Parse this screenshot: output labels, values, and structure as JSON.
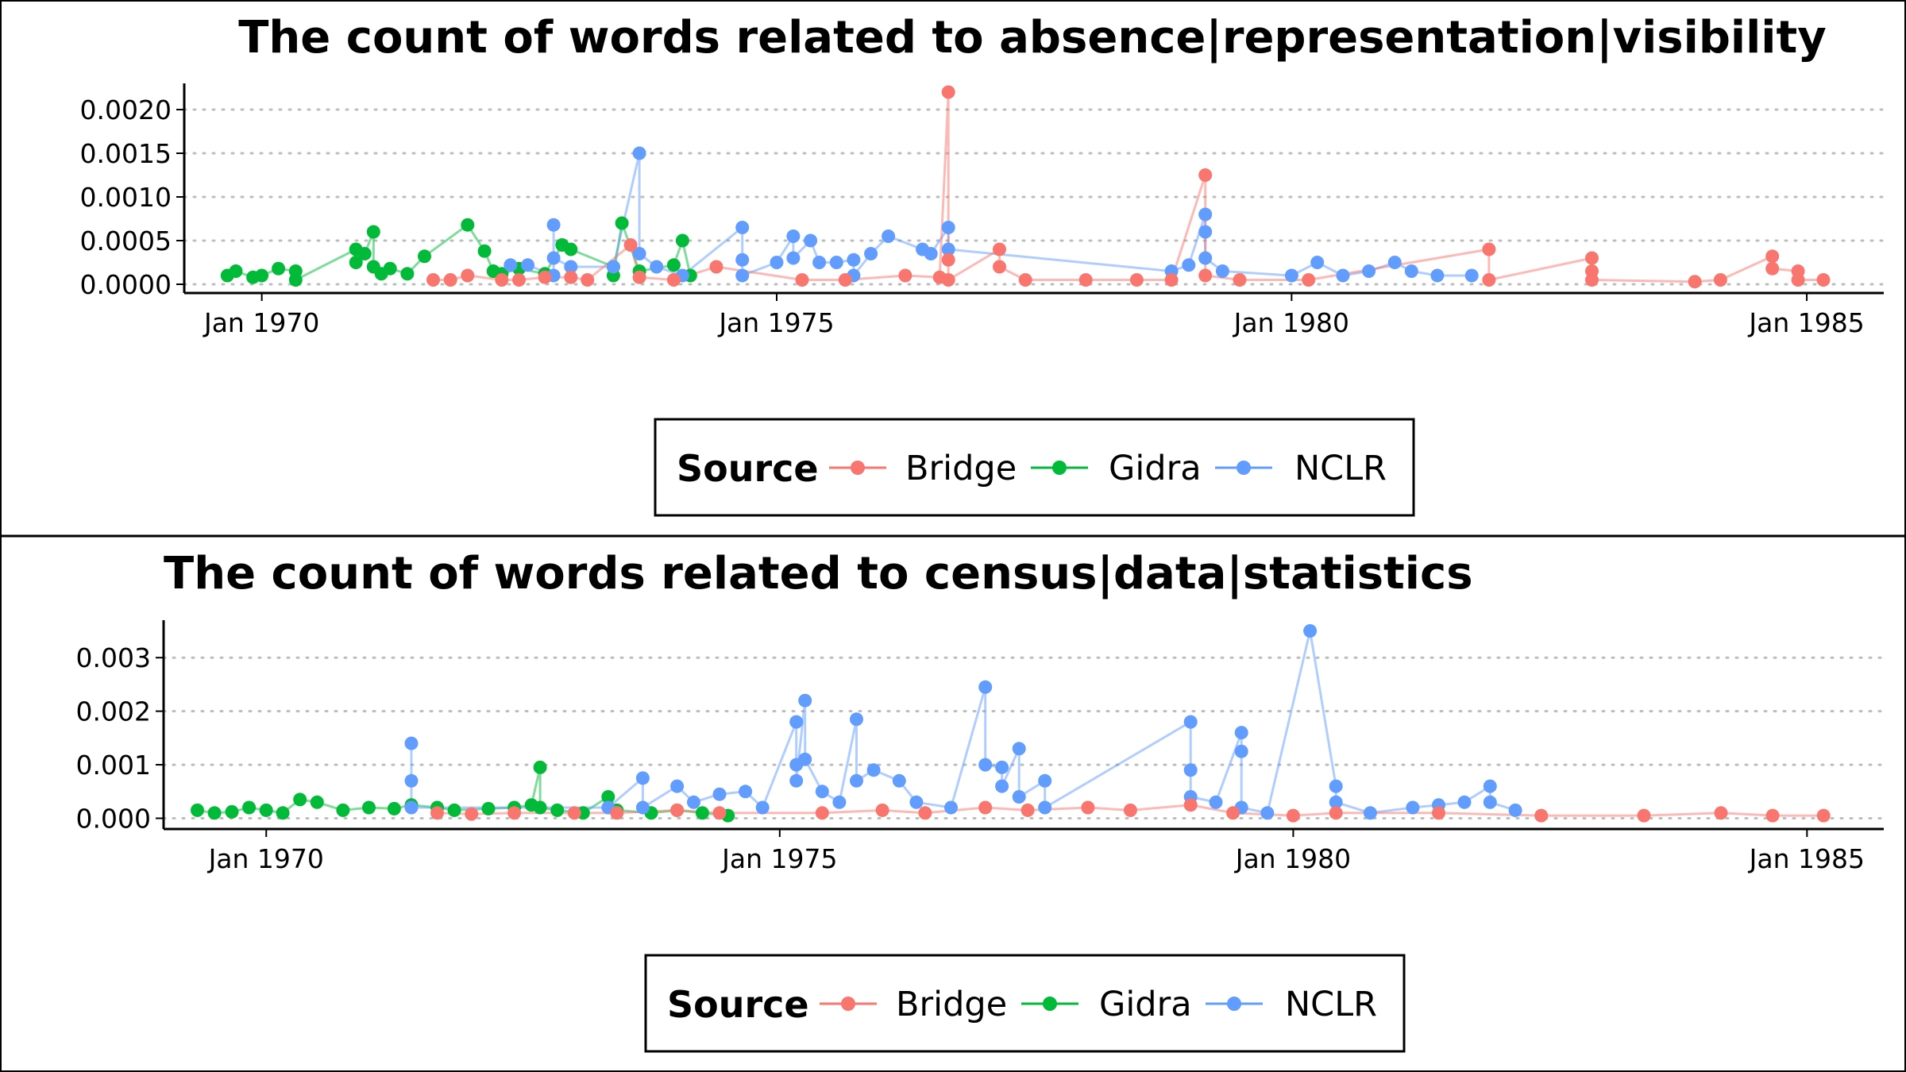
{
  "legend": {
    "title": "Source",
    "entries": [
      {
        "name": "Bridge",
        "color": "#F8766D"
      },
      {
        "name": "Gidra",
        "color": "#00BA38"
      },
      {
        "name": "NCLR",
        "color": "#619CFF"
      }
    ]
  },
  "chart_data": [
    {
      "type": "line",
      "title": "The count of words related to absence|representation|visibility",
      "xlabel": "",
      "ylabel": "",
      "x_type": "date",
      "xlim": [
        "1969-04-01",
        "1985-10-01"
      ],
      "ylim": [
        -0.0001,
        0.0023
      ],
      "x_ticks": [
        {
          "date": "1970-01-01",
          "label": "Jan 1970"
        },
        {
          "date": "1975-01-01",
          "label": "Jan 1975"
        },
        {
          "date": "1980-01-01",
          "label": "Jan 1980"
        },
        {
          "date": "1985-01-01",
          "label": "Jan 1985"
        }
      ],
      "y_ticks": [
        {
          "value": 0,
          "label": "0.0000"
        },
        {
          "value": 0.0005,
          "label": "0.0005"
        },
        {
          "value": 0.001,
          "label": "0.0010"
        },
        {
          "value": 0.0015,
          "label": "0.0015"
        },
        {
          "value": 0.002,
          "label": "0.0020"
        }
      ],
      "grid": "horizontal-dotted",
      "legend_position": "bottom",
      "series": [
        {
          "name": "Gidra",
          "color": "#00BA38",
          "points": [
            [
              "1969-09-01",
              0.0001
            ],
            [
              "1969-10-01",
              0.00015
            ],
            [
              "1969-12-01",
              8e-05
            ],
            [
              "1970-01-01",
              0.0001
            ],
            [
              "1970-03-01",
              0.00018
            ],
            [
              "1970-05-01",
              0.00015
            ],
            [
              "1970-05-01",
              5e-05
            ],
            [
              "1970-12-01",
              0.0004
            ],
            [
              "1970-12-01",
              0.00025
            ],
            [
              "1971-01-01",
              0.00035
            ],
            [
              "1971-02-01",
              0.0006
            ],
            [
              "1971-02-01",
              0.0002
            ],
            [
              "1971-03-01",
              0.00012
            ],
            [
              "1971-04-01",
              0.00018
            ],
            [
              "1971-06-01",
              0.00012
            ],
            [
              "1971-08-01",
              0.00032
            ],
            [
              "1972-01-01",
              0.00068
            ],
            [
              "1972-03-01",
              0.00038
            ],
            [
              "1972-04-01",
              0.00015
            ],
            [
              "1972-05-01",
              0.00012
            ],
            [
              "1972-07-01",
              0.00018
            ],
            [
              "1972-10-01",
              0.00012
            ],
            [
              "1972-12-01",
              0.00045
            ],
            [
              "1973-01-01",
              0.0004
            ],
            [
              "1973-06-01",
              0.0002
            ],
            [
              "1973-06-01",
              0.0001
            ],
            [
              "1973-07-01",
              0.0007
            ],
            [
              "1973-09-01",
              0.00015
            ],
            [
              "1974-01-01",
              0.00022
            ],
            [
              "1974-02-01",
              0.0005
            ],
            [
              "1974-03-01",
              0.0001
            ]
          ]
        },
        {
          "name": "NCLR",
          "color": "#619CFF",
          "points": [
            [
              "1972-06-01",
              0.00022
            ],
            [
              "1972-08-01",
              0.00022
            ],
            [
              "1972-11-01",
              0.0001
            ],
            [
              "1972-11-01",
              0.00068
            ],
            [
              "1972-11-01",
              0.0003
            ],
            [
              "1973-01-01",
              0.0002
            ],
            [
              "1973-06-01",
              0.0002
            ],
            [
              "1973-09-01",
              0.0015
            ],
            [
              "1973-09-01",
              0.00035
            ],
            [
              "1973-11-01",
              0.0002
            ],
            [
              "1974-02-01",
              0.0001
            ],
            [
              "1974-09-01",
              0.00065
            ],
            [
              "1974-09-01",
              0.00028
            ],
            [
              "1974-09-01",
              0.0001
            ],
            [
              "1975-01-01",
              0.00025
            ],
            [
              "1975-03-01",
              0.00055
            ],
            [
              "1975-03-01",
              0.0003
            ],
            [
              "1975-05-01",
              0.0005
            ],
            [
              "1975-06-01",
              0.00025
            ],
            [
              "1975-08-01",
              0.00025
            ],
            [
              "1975-10-01",
              0.00028
            ],
            [
              "1975-10-01",
              0.0001
            ],
            [
              "1975-12-01",
              0.00035
            ],
            [
              "1976-02-01",
              0.00055
            ],
            [
              "1976-06-01",
              0.0004
            ],
            [
              "1976-07-01",
              0.00035
            ],
            [
              "1976-09-01",
              0.00065
            ],
            [
              "1976-09-01",
              0.0004
            ],
            [
              "1978-11-01",
              0.00015
            ],
            [
              "1979-01-01",
              0.00022
            ],
            [
              "1979-03-01",
              0.0008
            ],
            [
              "1979-03-01",
              0.0006
            ],
            [
              "1979-03-01",
              0.0003
            ],
            [
              "1979-05-01",
              0.00015
            ],
            [
              "1980-01-01",
              0.0001
            ],
            [
              "1980-04-01",
              0.00025
            ],
            [
              "1980-07-01",
              0.0001
            ],
            [
              "1980-10-01",
              0.00015
            ],
            [
              "1981-01-01",
              0.00025
            ],
            [
              "1981-03-01",
              0.00015
            ],
            [
              "1981-06-01",
              0.0001
            ],
            [
              "1981-10-01",
              0.0001
            ]
          ]
        },
        {
          "name": "Bridge",
          "color": "#F8766D",
          "points": [
            [
              "1971-09-01",
              5e-05
            ],
            [
              "1971-11-01",
              5e-05
            ],
            [
              "1972-01-01",
              0.0001
            ],
            [
              "1972-05-01",
              5e-05
            ],
            [
              "1972-07-01",
              5e-05
            ],
            [
              "1972-10-01",
              8e-05
            ],
            [
              "1973-01-01",
              8e-05
            ],
            [
              "1973-03-01",
              5e-05
            ],
            [
              "1973-08-01",
              0.00045
            ],
            [
              "1973-09-01",
              8e-05
            ],
            [
              "1974-01-01",
              5e-05
            ],
            [
              "1974-06-01",
              0.0002
            ],
            [
              "1975-04-01",
              5e-05
            ],
            [
              "1975-09-01",
              5e-05
            ],
            [
              "1976-04-01",
              0.0001
            ],
            [
              "1976-08-01",
              8e-05
            ],
            [
              "1976-09-01",
              0.0022
            ],
            [
              "1976-09-01",
              0.00028
            ],
            [
              "1976-09-01",
              5e-05
            ],
            [
              "1977-03-01",
              0.0004
            ],
            [
              "1977-03-01",
              0.0002
            ],
            [
              "1977-06-01",
              5e-05
            ],
            [
              "1978-01-01",
              5e-05
            ],
            [
              "1978-07-01",
              5e-05
            ],
            [
              "1978-11-01",
              5e-05
            ],
            [
              "1979-03-01",
              0.00125
            ],
            [
              "1979-03-01",
              0.0001
            ],
            [
              "1979-07-01",
              5e-05
            ],
            [
              "1980-03-01",
              5e-05
            ],
            [
              "1981-12-01",
              0.0004
            ],
            [
              "1981-12-01",
              5e-05
            ],
            [
              "1982-12-01",
              0.0003
            ],
            [
              "1982-12-01",
              0.00015
            ],
            [
              "1982-12-01",
              5e-05
            ],
            [
              "1983-12-01",
              3e-05
            ],
            [
              "1984-03-01",
              5e-05
            ],
            [
              "1984-09-01",
              0.00032
            ],
            [
              "1984-09-01",
              0.00018
            ],
            [
              "1984-12-01",
              0.00015
            ],
            [
              "1984-12-01",
              5e-05
            ],
            [
              "1985-03-01",
              5e-05
            ]
          ]
        }
      ]
    },
    {
      "type": "line",
      "title": "The count of words related to census|data|statistics",
      "xlabel": "",
      "ylabel": "",
      "x_type": "date",
      "xlim": [
        "1969-01-01",
        "1985-10-01"
      ],
      "ylim": [
        -0.0002,
        0.0037
      ],
      "x_ticks": [
        {
          "date": "1970-01-01",
          "label": "Jan 1970"
        },
        {
          "date": "1975-01-01",
          "label": "Jan 1975"
        },
        {
          "date": "1980-01-01",
          "label": "Jan 1980"
        },
        {
          "date": "1985-01-01",
          "label": "Jan 1985"
        }
      ],
      "y_ticks": [
        {
          "value": 0,
          "label": "0.000"
        },
        {
          "value": 0.001,
          "label": "0.001"
        },
        {
          "value": 0.002,
          "label": "0.002"
        },
        {
          "value": 0.003,
          "label": "0.003"
        }
      ],
      "grid": "horizontal-dotted",
      "legend_position": "bottom",
      "series": [
        {
          "name": "Gidra",
          "color": "#00BA38",
          "points": [
            [
              "1969-05-01",
              0.00015
            ],
            [
              "1969-07-01",
              0.0001
            ],
            [
              "1969-09-01",
              0.00012
            ],
            [
              "1969-11-01",
              0.0002
            ],
            [
              "1970-01-01",
              0.00015
            ],
            [
              "1970-03-01",
              0.0001
            ],
            [
              "1970-05-01",
              0.00035
            ],
            [
              "1970-07-01",
              0.0003
            ],
            [
              "1970-10-01",
              0.00015
            ],
            [
              "1971-01-01",
              0.0002
            ],
            [
              "1971-04-01",
              0.00018
            ],
            [
              "1971-06-01",
              0.00025
            ],
            [
              "1971-09-01",
              0.0002
            ],
            [
              "1971-11-01",
              0.00015
            ],
            [
              "1972-03-01",
              0.00018
            ],
            [
              "1972-06-01",
              0.0002
            ],
            [
              "1972-08-01",
              0.00025
            ],
            [
              "1972-09-01",
              0.00095
            ],
            [
              "1972-09-01",
              0.0002
            ],
            [
              "1972-11-01",
              0.00015
            ],
            [
              "1973-02-01",
              0.0001
            ],
            [
              "1973-05-01",
              0.0004
            ],
            [
              "1973-06-01",
              0.00015
            ],
            [
              "1973-10-01",
              0.0001
            ],
            [
              "1974-01-01",
              0.00015
            ],
            [
              "1974-04-01",
              0.0001
            ],
            [
              "1974-07-01",
              5e-05
            ]
          ]
        },
        {
          "name": "NCLR",
          "color": "#619CFF",
          "points": [
            [
              "1971-06-01",
              0.0014
            ],
            [
              "1971-06-01",
              0.0007
            ],
            [
              "1971-06-01",
              0.0002
            ],
            [
              "1973-05-01",
              0.0002
            ],
            [
              "1973-09-01",
              0.00075
            ],
            [
              "1973-09-01",
              0.0002
            ],
            [
              "1974-01-01",
              0.0006
            ],
            [
              "1974-03-01",
              0.0003
            ],
            [
              "1974-06-01",
              0.00045
            ],
            [
              "1974-09-01",
              0.0005
            ],
            [
              "1974-11-01",
              0.0002
            ],
            [
              "1975-03-01",
              0.0018
            ],
            [
              "1975-03-01",
              0.001
            ],
            [
              "1975-03-01",
              0.0007
            ],
            [
              "1975-04-01",
              0.0022
            ],
            [
              "1975-04-01",
              0.0011
            ],
            [
              "1975-06-01",
              0.0005
            ],
            [
              "1975-08-01",
              0.0003
            ],
            [
              "1975-10-01",
              0.00185
            ],
            [
              "1975-10-01",
              0.0007
            ],
            [
              "1975-12-01",
              0.0009
            ],
            [
              "1976-03-01",
              0.0007
            ],
            [
              "1976-05-01",
              0.0003
            ],
            [
              "1976-09-01",
              0.0002
            ],
            [
              "1977-01-01",
              0.00245
            ],
            [
              "1977-01-01",
              0.001
            ],
            [
              "1977-03-01",
              0.00095
            ],
            [
              "1977-03-01",
              0.0006
            ],
            [
              "1977-05-01",
              0.0013
            ],
            [
              "1977-05-01",
              0.0004
            ],
            [
              "1977-08-01",
              0.0007
            ],
            [
              "1977-08-01",
              0.0002
            ],
            [
              "1979-01-01",
              0.0018
            ],
            [
              "1979-01-01",
              0.0009
            ],
            [
              "1979-01-01",
              0.0004
            ],
            [
              "1979-04-01",
              0.0003
            ],
            [
              "1979-07-01",
              0.0016
            ],
            [
              "1979-07-01",
              0.00125
            ],
            [
              "1979-07-01",
              0.0002
            ],
            [
              "1979-10-01",
              0.0001
            ],
            [
              "1980-03-01",
              0.0035
            ],
            [
              "1980-06-01",
              0.0006
            ],
            [
              "1980-06-01",
              0.0003
            ],
            [
              "1980-10-01",
              0.0001
            ],
            [
              "1981-03-01",
              0.0002
            ],
            [
              "1981-06-01",
              0.00025
            ],
            [
              "1981-09-01",
              0.0003
            ],
            [
              "1981-12-01",
              0.0006
            ],
            [
              "1981-12-01",
              0.0003
            ],
            [
              "1982-03-01",
              0.00015
            ]
          ]
        },
        {
          "name": "Bridge",
          "color": "#F8766D",
          "points": [
            [
              "1971-09-01",
              0.0001
            ],
            [
              "1972-01-01",
              8e-05
            ],
            [
              "1972-06-01",
              0.0001
            ],
            [
              "1973-01-01",
              0.0001
            ],
            [
              "1973-06-01",
              0.0001
            ],
            [
              "1974-01-01",
              0.00015
            ],
            [
              "1974-06-01",
              0.0001
            ],
            [
              "1975-06-01",
              0.0001
            ],
            [
              "1976-01-01",
              0.00015
            ],
            [
              "1976-06-01",
              0.0001
            ],
            [
              "1977-01-01",
              0.0002
            ],
            [
              "1977-06-01",
              0.00015
            ],
            [
              "1978-01-01",
              0.0002
            ],
            [
              "1978-06-01",
              0.00015
            ],
            [
              "1979-01-01",
              0.00025
            ],
            [
              "1979-06-01",
              0.0001
            ],
            [
              "1980-01-01",
              5e-05
            ],
            [
              "1980-06-01",
              0.0001
            ],
            [
              "1981-06-01",
              0.0001
            ],
            [
              "1982-06-01",
              5e-05
            ],
            [
              "1983-06-01",
              5e-05
            ],
            [
              "1984-03-01",
              0.0001
            ],
            [
              "1984-09-01",
              5e-05
            ],
            [
              "1985-03-01",
              5e-05
            ]
          ]
        }
      ]
    }
  ]
}
